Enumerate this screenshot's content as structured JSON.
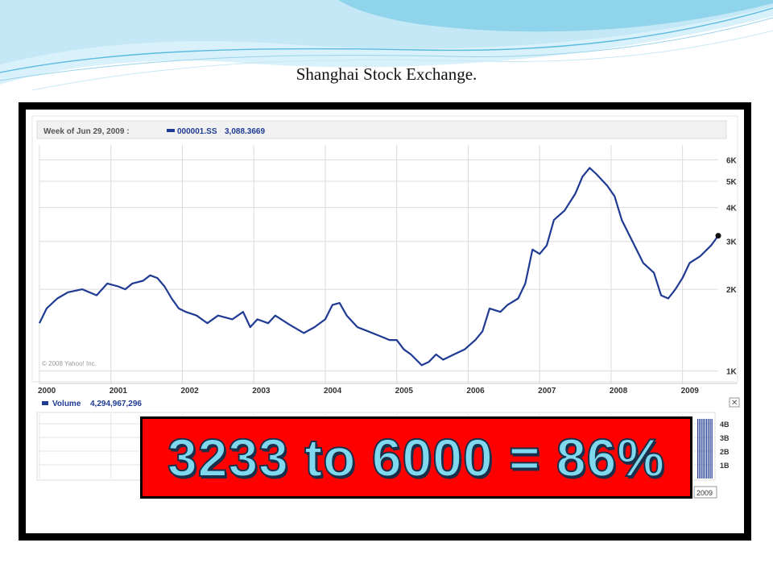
{
  "slide": {
    "title": "Shanghai Stock Exchange.",
    "callout": "3233 to 6000 = 86%"
  },
  "colors": {
    "line": "#1f3a93",
    "grid": "#dcdcdc",
    "callout_bg": "#ff0000",
    "callout_text": "#7fd8ee",
    "frame": "#000000",
    "wave_light": "#bfe6f5",
    "wave_mid": "#6cc5e3"
  },
  "chart_data": {
    "type": "line",
    "title": "Week of Jun 29, 2009 :",
    "legend": {
      "symbol": "000001.SS",
      "value": "3,088.3669"
    },
    "x_ticks": [
      "2000",
      "2001",
      "2002",
      "2003",
      "2004",
      "2005",
      "2006",
      "2007",
      "2008",
      "2009"
    ],
    "y_ticks": [
      "1K",
      "2K",
      "3K",
      "4K",
      "5K",
      "6K"
    ],
    "y_scale": "log",
    "xlim": [
      2000.0,
      2009.5
    ],
    "ylim": [
      950,
      6800
    ],
    "copyright": "© 2008 Yahoo! Inc.",
    "series": [
      {
        "name": "000001.SS",
        "x": [
          2000.0,
          2000.1,
          2000.25,
          2000.4,
          2000.6,
          2000.8,
          2000.95,
          2001.1,
          2001.2,
          2001.3,
          2001.45,
          2001.55,
          2001.65,
          2001.75,
          2001.85,
          2001.95,
          2002.05,
          2002.2,
          2002.35,
          2002.5,
          2002.7,
          2002.85,
          2002.95,
          2003.05,
          2003.2,
          2003.3,
          2003.5,
          2003.7,
          2003.85,
          2004.0,
          2004.1,
          2004.2,
          2004.3,
          2004.45,
          2004.6,
          2004.75,
          2004.9,
          2005.0,
          2005.1,
          2005.2,
          2005.35,
          2005.45,
          2005.55,
          2005.65,
          2005.8,
          2005.95,
          2006.1,
          2006.2,
          2006.3,
          2006.45,
          2006.55,
          2006.7,
          2006.8,
          2006.9,
          2007.0,
          2007.1,
          2007.2,
          2007.35,
          2007.5,
          2007.6,
          2007.7,
          2007.8,
          2007.95,
          2008.05,
          2008.15,
          2008.3,
          2008.45,
          2008.6,
          2008.7,
          2008.8,
          2008.9,
          2009.0,
          2009.1,
          2009.25,
          2009.4,
          2009.5
        ],
        "y": [
          1500,
          1700,
          1850,
          1950,
          2000,
          1900,
          2100,
          2050,
          2000,
          2100,
          2150,
          2250,
          2200,
          2050,
          1850,
          1700,
          1650,
          1600,
          1500,
          1600,
          1550,
          1650,
          1450,
          1550,
          1500,
          1600,
          1480,
          1380,
          1450,
          1550,
          1750,
          1780,
          1600,
          1450,
          1400,
          1350,
          1300,
          1300,
          1200,
          1150,
          1050,
          1080,
          1150,
          1100,
          1150,
          1200,
          1300,
          1400,
          1700,
          1650,
          1750,
          1850,
          2100,
          2800,
          2700,
          2900,
          3600,
          3900,
          4500,
          5200,
          5600,
          5300,
          4800,
          4400,
          3600,
          3000,
          2500,
          2300,
          1900,
          1850,
          2000,
          2200,
          2500,
          2650,
          2900,
          3150
        ]
      }
    ],
    "volume": {
      "label": "Volume",
      "value": "4,294,967,296",
      "y_ticks": [
        "1B",
        "2B",
        "3B",
        "4B"
      ],
      "visible_x_label": "2009"
    }
  }
}
